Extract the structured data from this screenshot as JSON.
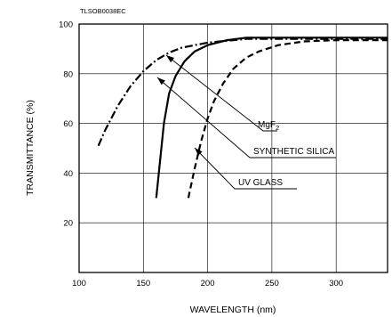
{
  "chart_data": {
    "type": "line",
    "code": "TLSOB0038EC",
    "xlabel": "WAVELENGTH (nm)",
    "ylabel": "TRANSMITTANCE (%)",
    "xlim": [
      100,
      340
    ],
    "ylim": [
      0,
      100
    ],
    "x_ticks": [
      100,
      150,
      200,
      250,
      300
    ],
    "y_ticks": [
      20,
      40,
      60,
      80,
      100
    ],
    "grid": true,
    "series": [
      {
        "name": "MgF2",
        "label_main": "MgF",
        "label_sub": "2",
        "style": "dash-dot",
        "points": [
          [
            115,
            51
          ],
          [
            120,
            57
          ],
          [
            130,
            67
          ],
          [
            140,
            75
          ],
          [
            150,
            81
          ],
          [
            160,
            85.5
          ],
          [
            170,
            88.5
          ],
          [
            180,
            90.5
          ],
          [
            200,
            92.5
          ],
          [
            230,
            94
          ],
          [
            340,
            94
          ]
        ]
      },
      {
        "name": "SYNTHETIC SILICA",
        "label_main": "SYNTHETIC SILICA",
        "style": "solid",
        "points": [
          [
            160,
            30
          ],
          [
            163,
            45
          ],
          [
            166,
            60
          ],
          [
            170,
            72
          ],
          [
            175,
            79
          ],
          [
            182,
            85
          ],
          [
            190,
            89
          ],
          [
            200,
            91.5
          ],
          [
            215,
            93.5
          ],
          [
            230,
            94.5
          ],
          [
            340,
            94.5
          ]
        ]
      },
      {
        "name": "UV GLASS",
        "label_main": "UV GLASS",
        "style": "dashed",
        "points": [
          [
            185,
            30
          ],
          [
            190,
            42
          ],
          [
            195,
            53
          ],
          [
            200,
            62
          ],
          [
            205,
            69
          ],
          [
            212,
            76
          ],
          [
            220,
            82
          ],
          [
            230,
            86.5
          ],
          [
            240,
            89
          ],
          [
            255,
            91.5
          ],
          [
            275,
            93
          ],
          [
            300,
            93.5
          ],
          [
            340,
            93.5
          ]
        ]
      }
    ]
  }
}
